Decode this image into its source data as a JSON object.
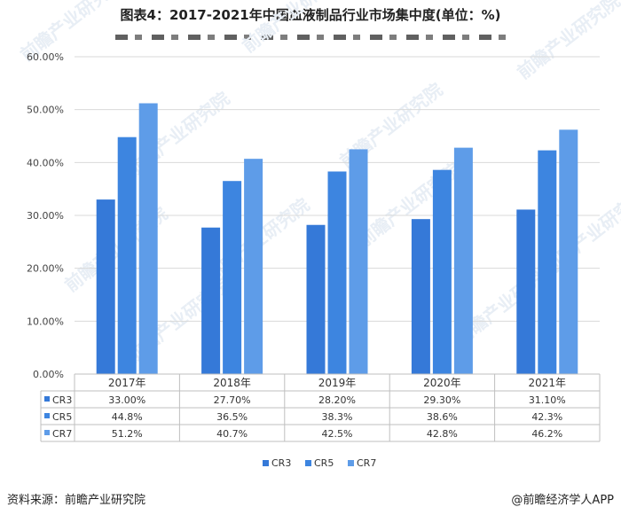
{
  "title": "图表4：2017-2021年中国血液制品行业市场集中度(单位：%)",
  "footer": {
    "source": "资料来源：前瞻产业研究院",
    "brand": "@前瞻经济学人APP"
  },
  "watermark": "前瞻产业研究院",
  "colors": {
    "CR3": "#3579D8",
    "CR5": "#3D85E0",
    "CR7": "#5E9CE8",
    "grid": "#d9d9d9",
    "table_border": "#bfbfbf"
  },
  "chart_data": {
    "type": "bar",
    "categories": [
      "2017年",
      "2018年",
      "2019年",
      "2020年",
      "2021年"
    ],
    "series": [
      {
        "name": "CR3",
        "values": [
          33.0,
          27.7,
          28.2,
          29.3,
          31.1
        ],
        "labels": [
          "33.00%",
          "27.70%",
          "28.20%",
          "29.30%",
          "31.10%"
        ]
      },
      {
        "name": "CR5",
        "values": [
          44.8,
          36.5,
          38.3,
          38.6,
          42.3
        ],
        "labels": [
          "44.8%",
          "36.5%",
          "38.3%",
          "38.6%",
          "42.3%"
        ]
      },
      {
        "name": "CR7",
        "values": [
          51.2,
          40.7,
          42.5,
          42.8,
          46.2
        ],
        "labels": [
          "51.2%",
          "40.7%",
          "42.5%",
          "42.8%",
          "46.2%"
        ]
      }
    ],
    "y_ticks": [
      "0.00%",
      "10.00%",
      "20.00%",
      "30.00%",
      "40.00%",
      "50.00%",
      "60.00%"
    ],
    "ylim": [
      0,
      60
    ],
    "grid": true,
    "legend_position": "bottom",
    "data_table": true
  }
}
